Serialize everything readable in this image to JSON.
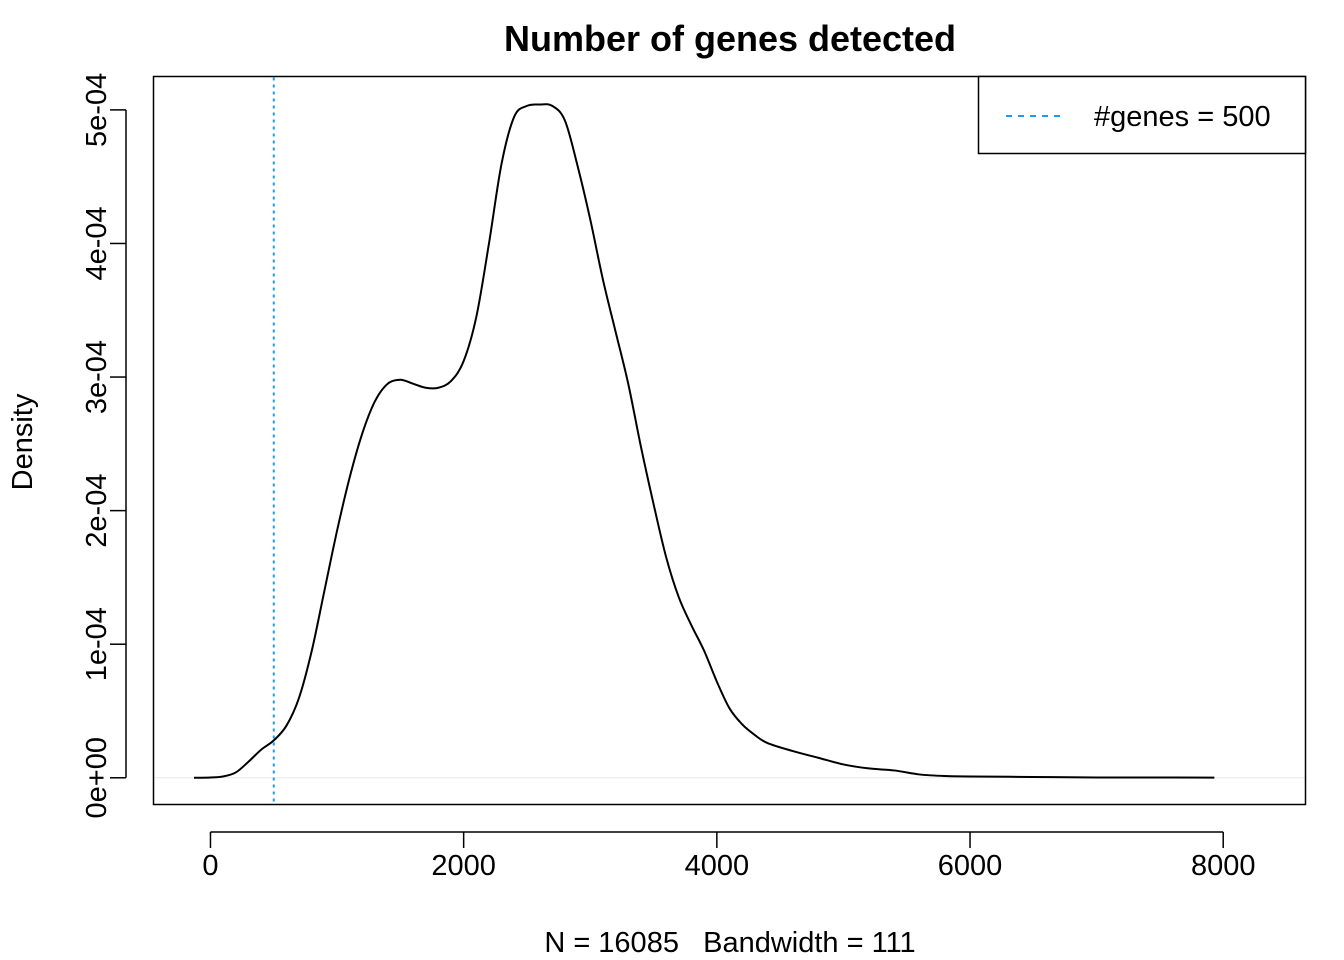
{
  "chart_data": {
    "type": "line",
    "title": "Number of genes detected",
    "xlabel": "N = 16085   Bandwidth = 111",
    "ylabel": "Density",
    "xlim": [
      -450,
      8650
    ],
    "ylim": [
      -2e-05,
      0.000525
    ],
    "x_ticks": [
      {
        "value": 0,
        "label": "0"
      },
      {
        "value": 2000,
        "label": "2000"
      },
      {
        "value": 4000,
        "label": "4000"
      },
      {
        "value": 6000,
        "label": "6000"
      },
      {
        "value": 8000,
        "label": "8000"
      }
    ],
    "y_ticks": [
      {
        "value": 0,
        "label": "0e+00"
      },
      {
        "value": 0.0001,
        "label": "1e-04"
      },
      {
        "value": 0.0002,
        "label": "2e-04"
      },
      {
        "value": 0.0003,
        "label": "3e-04"
      },
      {
        "value": 0.0004,
        "label": "4e-04"
      },
      {
        "value": 0.0005,
        "label": "5e-04"
      }
    ],
    "grid": false,
    "legend_position": "top-right",
    "series": [
      {
        "color": "#000000",
        "x": [
          -130,
          0,
          100,
          200,
          300,
          400,
          500,
          600,
          700,
          800,
          900,
          1000,
          1100,
          1200,
          1300,
          1400,
          1500,
          1600,
          1700,
          1800,
          1900,
          2000,
          2100,
          2200,
          2300,
          2400,
          2500,
          2600,
          2700,
          2800,
          2900,
          3000,
          3100,
          3200,
          3300,
          3400,
          3500,
          3600,
          3700,
          3800,
          3900,
          4000,
          4100,
          4200,
          4300,
          4400,
          4600,
          4800,
          5000,
          5200,
          5400,
          5600,
          5800,
          6000,
          6500,
          7000,
          7600,
          7930
        ],
        "y": [
          0,
          2e-07,
          1e-06,
          4e-06,
          1.2e-05,
          2.1e-05,
          2.8e-05,
          3.9e-05,
          6e-05,
          9.5e-05,
          0.00014,
          0.000185,
          0.000225,
          0.000258,
          0.000282,
          0.000295,
          0.000298,
          0.000295,
          0.000292,
          0.000292,
          0.000297,
          0.000312,
          0.000345,
          0.0004,
          0.00046,
          0.000495,
          0.000503,
          0.000504,
          0.000503,
          0.000492,
          0.000458,
          0.000418,
          0.000373,
          0.000334,
          0.000295,
          0.000248,
          0.000205,
          0.000165,
          0.000135,
          0.000114,
          9.5e-05,
          7.2e-05,
          5.2e-05,
          4e-05,
          3.2e-05,
          2.6e-05,
          2e-05,
          1.5e-05,
          1e-05,
          7e-06,
          5.5e-06,
          2.5e-06,
          1.3e-06,
          1e-06,
          6e-07,
          2e-07,
          2e-07,
          1e-07
        ]
      }
    ],
    "reference_line": {
      "x": 500,
      "color": "#1e9bf0",
      "style": "dotted",
      "legend_label": "#genes = 500"
    }
  }
}
